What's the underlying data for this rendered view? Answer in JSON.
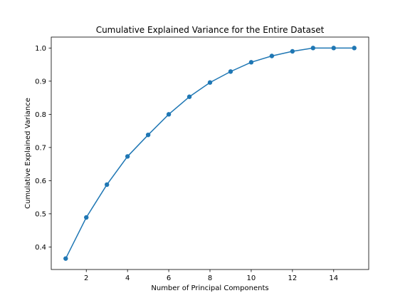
{
  "chart_data": {
    "type": "line",
    "title": "Cumulative Explained Variance for the Entire Dataset",
    "xlabel": "Number of Principal Components",
    "ylabel": "Cumulative Explained Variance",
    "x": [
      1,
      2,
      3,
      4,
      5,
      6,
      7,
      8,
      9,
      10,
      11,
      12,
      13,
      14,
      15
    ],
    "series": [
      {
        "values": [
          0.365,
          0.489,
          0.588,
          0.673,
          0.738,
          0.8,
          0.853,
          0.896,
          0.929,
          0.957,
          0.976,
          0.99,
          1.0,
          1.0,
          1.0
        ],
        "color": "#1f77b4",
        "marker": "circle"
      }
    ],
    "xlim": [
      0.3,
      15.7
    ],
    "ylim": [
      0.332,
      1.033
    ],
    "xticks": [
      2,
      4,
      6,
      8,
      10,
      12,
      14
    ],
    "xtick_labels": [
      "2",
      "4",
      "6",
      "8",
      "10",
      "12",
      "14"
    ],
    "yticks": [
      0.4,
      0.5,
      0.6,
      0.7,
      0.8,
      0.9,
      1.0
    ],
    "ytick_labels": [
      "0.4",
      "0.5",
      "0.6",
      "0.7",
      "0.8",
      "0.9",
      "1.0"
    ],
    "grid": false,
    "legend": "none"
  }
}
